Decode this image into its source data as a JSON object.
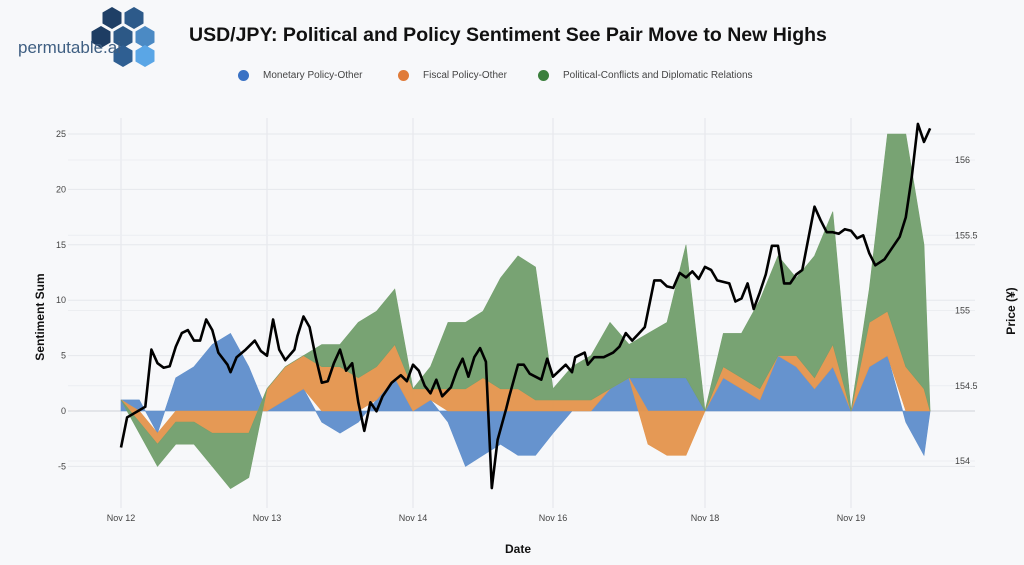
{
  "header": {
    "logo_text": "permutable.ai",
    "title": "USD/JPY:  Political and Policy Sentiment See Pair Move to New Highs"
  },
  "legend": [
    {
      "label": "Monetary Policy-Other",
      "color": "#3a72c4"
    },
    {
      "label": "Fiscal Policy-Other",
      "color": "#e07b39"
    },
    {
      "label": "Political-Conflicts and Diplomatic Relations",
      "color": "#3b7f3c"
    }
  ],
  "chart_data": {
    "type": "area",
    "title": "USD/JPY:  Political and Policy Sentiment See Pair Move to New Highs",
    "xlabel": "Date",
    "ylabel": "Sentiment Sum",
    "y2label": "Price (¥)",
    "x_ticks": [
      "Nov 12",
      "Nov 13",
      "Nov 14",
      "Nov 16",
      "Nov 18",
      "Nov 19"
    ],
    "y_ticks": [
      "-5",
      "0",
      "5",
      "10",
      "15",
      "20",
      "25"
    ],
    "y2_ticks": [
      "154",
      "154.5",
      "155",
      "155.5",
      "156"
    ],
    "ylim": [
      -8.5,
      27
    ],
    "y2lim": [
      153.7,
      156.35
    ],
    "grid": true,
    "legend_position": "top",
    "x": [
      "Nov 12 00:00",
      "Nov 12 03:00",
      "Nov 12 06:00",
      "Nov 12 09:00",
      "Nov 12 12:00",
      "Nov 12 15:00",
      "Nov 12 18:00",
      "Nov 12 21:00",
      "Nov 13 00:00",
      "Nov 13 03:00",
      "Nov 13 06:00",
      "Nov 13 09:00",
      "Nov 13 12:00",
      "Nov 13 15:00",
      "Nov 13 18:00",
      "Nov 13 21:00",
      "Nov 14 00:00",
      "Nov 14 03:00",
      "Nov 14 06:00",
      "Nov 14 09:00",
      "Nov 14 12:00",
      "Nov 14 15:00",
      "Nov 14 18:00",
      "Nov 14 21:00",
      "Nov 16 00:00",
      "Nov 16 03:00",
      "Nov 16 06:00",
      "Nov 16 09:00",
      "Nov 16 12:00",
      "Nov 16 15:00",
      "Nov 16 18:00",
      "Nov 16 21:00",
      "Nov 18 00:00",
      "Nov 18 03:00",
      "Nov 18 06:00",
      "Nov 18 09:00",
      "Nov 18 12:00",
      "Nov 18 15:00",
      "Nov 18 18:00",
      "Nov 18 21:00",
      "Nov 19 00:00",
      "Nov 19 03:00",
      "Nov 19 06:00",
      "Nov 19 09:00",
      "Nov 19 12:00",
      "Nov 19 13:00"
    ],
    "series": [
      {
        "name": "Monetary Policy-Other",
        "color": "#6190cc",
        "values": [
          1,
          1,
          -2,
          3,
          4,
          6,
          7,
          4,
          0,
          1,
          2,
          -1,
          -2,
          -1,
          1,
          3,
          0,
          1,
          -1,
          -5,
          -4,
          -3,
          -4,
          -4,
          -2,
          0,
          0,
          2,
          3,
          3,
          3,
          3,
          0,
          3,
          2,
          1,
          5,
          4,
          2,
          4,
          0,
          4,
          5,
          -1,
          -4,
          0
        ]
      },
      {
        "name": "Fiscal Policy-Other",
        "color": "#e4964f",
        "values": [
          0,
          -1,
          -1,
          -1,
          -1,
          -2,
          -2,
          -2,
          2,
          3,
          3,
          4,
          4,
          3,
          3,
          3,
          2,
          1,
          2,
          2,
          3,
          2,
          2,
          1,
          1,
          1,
          1,
          0,
          0,
          -3,
          -4,
          -4,
          0,
          1,
          1,
          1,
          0,
          1,
          1,
          2,
          0,
          4,
          4,
          4,
          2,
          0
        ]
      },
      {
        "name": "Political-Conflicts and Diplomatic Relations",
        "color": "#74a06e",
        "values": [
          0,
          -1,
          -2,
          -2,
          -2,
          -3,
          -5,
          -4,
          0,
          0,
          0,
          2,
          2,
          5,
          5,
          5,
          0,
          2,
          6,
          6,
          6,
          10,
          12,
          12,
          1,
          3,
          4,
          6,
          3,
          4,
          5,
          12,
          0,
          3,
          4,
          8,
          9,
          7,
          11,
          12,
          0,
          3,
          16,
          21,
          13,
          0
        ]
      }
    ],
    "price": {
      "color": "#000000",
      "points": [
        [
          "Nov 12 00:00",
          154.09
        ],
        [
          "Nov 12 01:00",
          154.29
        ],
        [
          "Nov 12 04:00",
          154.36
        ],
        [
          "Nov 12 05:00",
          154.74
        ],
        [
          "Nov 12 06:00",
          154.65
        ],
        [
          "Nov 12 07:00",
          154.62
        ],
        [
          "Nov 12 08:00",
          154.63
        ],
        [
          "Nov 12 09:00",
          154.76
        ],
        [
          "Nov 12 10:00",
          154.85
        ],
        [
          "Nov 12 11:00",
          154.87
        ],
        [
          "Nov 12 12:00",
          154.8
        ],
        [
          "Nov 12 13:00",
          154.8
        ],
        [
          "Nov 12 14:00",
          154.94
        ],
        [
          "Nov 12 15:00",
          154.87
        ],
        [
          "Nov 12 16:00",
          154.72
        ],
        [
          "Nov 12 17:30",
          154.64
        ],
        [
          "Nov 12 18:00",
          154.59
        ],
        [
          "Nov 12 19:00",
          154.69
        ],
        [
          "Nov 12 20:30",
          154.74
        ],
        [
          "Nov 12 22:00",
          154.8
        ],
        [
          "Nov 12 23:00",
          154.73
        ],
        [
          "Nov 13 00:00",
          154.7
        ],
        [
          "Nov 13 01:00",
          154.94
        ],
        [
          "Nov 13 02:00",
          154.74
        ],
        [
          "Nov 13 03:00",
          154.67
        ],
        [
          "Nov 13 04:30",
          154.74
        ],
        [
          "Nov 13 05:00",
          154.83
        ],
        [
          "Nov 13 06:00",
          154.96
        ],
        [
          "Nov 13 07:00",
          154.89
        ],
        [
          "Nov 13 08:00",
          154.69
        ],
        [
          "Nov 13 09:00",
          154.52
        ],
        [
          "Nov 13 10:00",
          154.53
        ],
        [
          "Nov 13 11:00",
          154.65
        ],
        [
          "Nov 13 12:00",
          154.74
        ],
        [
          "Nov 13 13:00",
          154.6
        ],
        [
          "Nov 13 14:00",
          154.65
        ],
        [
          "Nov 13 15:00",
          154.39
        ],
        [
          "Nov 13 16:00",
          154.2
        ],
        [
          "Nov 13 17:00",
          154.39
        ],
        [
          "Nov 13 18:00",
          154.33
        ],
        [
          "Nov 13 19:00",
          154.43
        ],
        [
          "Nov 13 20:30",
          154.52
        ],
        [
          "Nov 13 22:00",
          154.57
        ],
        [
          "Nov 13 23:00",
          154.53
        ],
        [
          "Nov 14 00:00",
          154.64
        ],
        [
          "Nov 14 01:00",
          154.6
        ],
        [
          "Nov 14 02:00",
          154.5
        ],
        [
          "Nov 14 03:00",
          154.45
        ],
        [
          "Nov 14 04:00",
          154.54
        ],
        [
          "Nov 14 05:00",
          154.43
        ],
        [
          "Nov 14 06:30",
          154.49
        ],
        [
          "Nov 14 07:30",
          154.6
        ],
        [
          "Nov 14 08:30",
          154.68
        ],
        [
          "Nov 14 09:30",
          154.56
        ],
        [
          "Nov 14 10:30",
          154.69
        ],
        [
          "Nov 14 11:30",
          154.75
        ],
        [
          "Nov 14 12:30",
          154.66
        ],
        [
          "Nov 14 13:30",
          153.82
        ],
        [
          "Nov 14 14:30",
          154.14
        ],
        [
          "Nov 14 16:00",
          154.35
        ],
        [
          "Nov 14 16:30",
          154.43
        ],
        [
          "Nov 14 18:00",
          154.64
        ],
        [
          "Nov 14 19:00",
          154.64
        ],
        [
          "Nov 14 20:00",
          154.58
        ],
        [
          "Nov 14 22:00",
          154.54
        ],
        [
          "Nov 14 23:00",
          154.68
        ],
        [
          "Nov 16 00:00",
          154.56
        ],
        [
          "Nov 16 02:00",
          154.64
        ],
        [
          "Nov 16 03:00",
          154.59
        ],
        [
          "Nov 16 03:30",
          154.69
        ],
        [
          "Nov 16 05:00",
          154.72
        ],
        [
          "Nov 16 05:30",
          154.64
        ],
        [
          "Nov 16 06:30",
          154.69
        ],
        [
          "Nov 16 08:00",
          154.69
        ],
        [
          "Nov 16 09:30",
          154.72
        ],
        [
          "Nov 16 10:30",
          154.76
        ],
        [
          "Nov 16 11:30",
          154.85
        ],
        [
          "Nov 16 12:30",
          154.8
        ],
        [
          "Nov 16 14:30",
          154.89
        ],
        [
          "Nov 16 16:00",
          155.2
        ],
        [
          "Nov 16 17:00",
          155.2
        ],
        [
          "Nov 16 18:00",
          155.16
        ],
        [
          "Nov 16 19:00",
          155.15
        ],
        [
          "Nov 16 20:00",
          155.25
        ],
        [
          "Nov 16 21:00",
          155.22
        ],
        [
          "Nov 16 22:00",
          155.26
        ],
        [
          "Nov 16 23:00",
          155.21
        ],
        [
          "Nov 18 00:00",
          155.29
        ],
        [
          "Nov 18 01:00",
          155.27
        ],
        [
          "Nov 18 02:00",
          155.2
        ],
        [
          "Nov 18 04:00",
          155.18
        ],
        [
          "Nov 18 05:00",
          155.06
        ],
        [
          "Nov 18 06:00",
          155.08
        ],
        [
          "Nov 18 07:00",
          155.18
        ],
        [
          "Nov 18 08:00",
          155.01
        ],
        [
          "Nov 18 09:00",
          155.12
        ],
        [
          "Nov 18 10:00",
          155.24
        ],
        [
          "Nov 18 11:00",
          155.43
        ],
        [
          "Nov 18 12:00",
          155.43
        ],
        [
          "Nov 18 13:00",
          155.18
        ],
        [
          "Nov 18 14:00",
          155.18
        ],
        [
          "Nov 18 15:00",
          155.24
        ],
        [
          "Nov 18 16:00",
          155.27
        ],
        [
          "Nov 18 18:00",
          155.69
        ],
        [
          "Nov 18 19:00",
          155.6
        ],
        [
          "Nov 18 20:00",
          155.52
        ],
        [
          "Nov 18 21:00",
          155.52
        ],
        [
          "Nov 18 22:00",
          155.51
        ],
        [
          "Nov 18 23:00",
          155.54
        ],
        [
          "Nov 19 00:00",
          155.53
        ],
        [
          "Nov 19 01:00",
          155.48
        ],
        [
          "Nov 19 02:00",
          155.5
        ],
        [
          "Nov 19 03:00",
          155.38
        ],
        [
          "Nov 19 04:00",
          155.3
        ],
        [
          "Nov 19 05:30",
          155.34
        ],
        [
          "Nov 19 06:30",
          155.4
        ],
        [
          "Nov 19 08:00",
          155.49
        ],
        [
          "Nov 19 09:00",
          155.62
        ],
        [
          "Nov 19 10:00",
          155.89
        ],
        [
          "Nov 19 11:00",
          156.24
        ],
        [
          "Nov 19 12:00",
          156.12
        ],
        [
          "Nov 19 13:00",
          156.21
        ]
      ]
    }
  }
}
